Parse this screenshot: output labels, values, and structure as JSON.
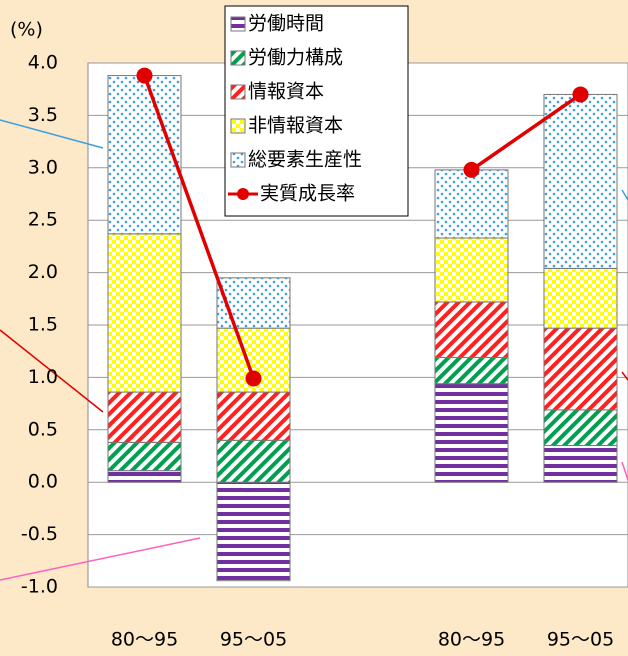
{
  "chart_data": {
    "type": "bar",
    "y_unit": "(%)",
    "categories": [
      "80〜95",
      "95〜05",
      null,
      "80〜95",
      "95〜05"
    ],
    "series": [
      {
        "name": "労働時間",
        "color": "#7030a0",
        "pattern": "horizontal",
        "values": [
          0.11,
          -0.94,
          null,
          0.94,
          0.35
        ]
      },
      {
        "name": "労働力構成",
        "color": "#00a050",
        "pattern": "diagonal",
        "values": [
          0.27,
          0.4,
          null,
          0.25,
          0.34
        ]
      },
      {
        "name": "情報資本",
        "color": "#ff2020",
        "pattern": "diagonal",
        "values": [
          0.48,
          0.46,
          null,
          0.53,
          0.78
        ]
      },
      {
        "name": "非情報資本",
        "color": "#ffff00",
        "pattern": "checker",
        "values": [
          1.51,
          0.61,
          null,
          0.61,
          0.57
        ]
      },
      {
        "name": "総要素生産性",
        "color": "#3aa0e0",
        "pattern": "dots",
        "values": [
          1.51,
          0.48,
          null,
          0.65,
          1.66
        ]
      },
      {
        "name": "実質成長率",
        "color": "#e00000",
        "kind": "line",
        "values": [
          3.88,
          0.99,
          null,
          2.98,
          3.7
        ]
      }
    ],
    "ylim": [
      -1,
      4
    ],
    "yticks": [
      {
        "value": -1,
        "label": "-1.0"
      },
      -0.5,
      {
        "value": 0,
        "label": "0.0"
      },
      0.5,
      {
        "value": 1,
        "label": "1.0"
      },
      1.5,
      {
        "value": 2,
        "label": "2.0"
      },
      2.5,
      {
        "value": 3,
        "label": "3.0"
      },
      3.5,
      {
        "value": 4,
        "label": "4.0"
      }
    ],
    "grid": true,
    "legend": "top"
  }
}
